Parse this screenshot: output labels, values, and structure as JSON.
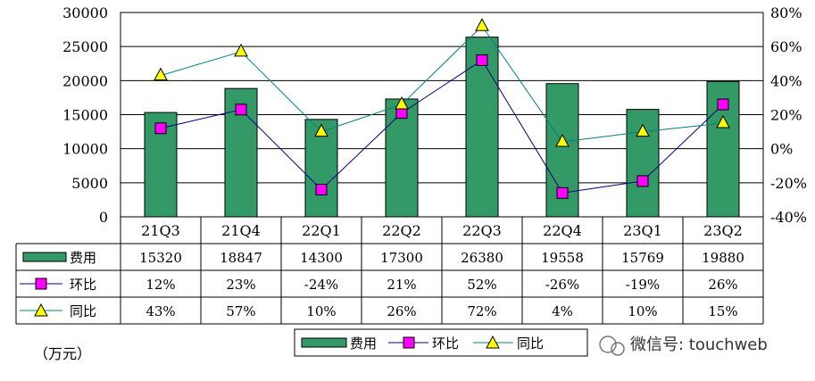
{
  "chart_data": {
    "type": "bar",
    "categories": [
      "21Q3",
      "21Q4",
      "22Q1",
      "22Q2",
      "22Q3",
      "22Q4",
      "23Q1",
      "23Q2"
    ],
    "series": [
      {
        "name": "费用",
        "type": "bar",
        "axis": "left",
        "color": "#339966",
        "values": [
          15320,
          18847,
          14300,
          17300,
          26380,
          19558,
          15769,
          19880
        ],
        "labels": [
          "15320",
          "18847",
          "14300",
          "17300",
          "26380",
          "19558",
          "15769",
          "19880"
        ]
      },
      {
        "name": "环比",
        "type": "line",
        "axis": "right",
        "color": "#ff00ff",
        "line_color": "#000080",
        "marker": "square",
        "values": [
          12,
          23,
          -24,
          21,
          52,
          -26,
          -19,
          26
        ],
        "labels": [
          "12%",
          "23%",
          "-24%",
          "21%",
          "52%",
          "-26%",
          "-19%",
          "26%"
        ]
      },
      {
        "name": "同比",
        "type": "line",
        "axis": "right",
        "color": "#ffff00",
        "line_color": "#008080",
        "marker": "triangle",
        "values": [
          43,
          57,
          10,
          26,
          72,
          4,
          10,
          15
        ],
        "labels": [
          "43%",
          "57%",
          "10%",
          "26%",
          "72%",
          "4%",
          "10%",
          "15%"
        ]
      }
    ],
    "y_left": {
      "ylim": [
        0,
        30000
      ],
      "ticks": [
        "0",
        "5000",
        "10000",
        "15000",
        "20000",
        "25000",
        "30000"
      ]
    },
    "y_right": {
      "ylim": [
        -40,
        80
      ],
      "ticks": [
        "-40%",
        "-20%",
        "0%",
        "20%",
        "40%",
        "60%",
        "80%"
      ]
    },
    "unit_label": "（万元）",
    "legend": {
      "position": "bottom",
      "items": [
        "费用",
        "环比",
        "同比"
      ]
    },
    "grid": true
  },
  "watermark": "微信号: touchweb"
}
